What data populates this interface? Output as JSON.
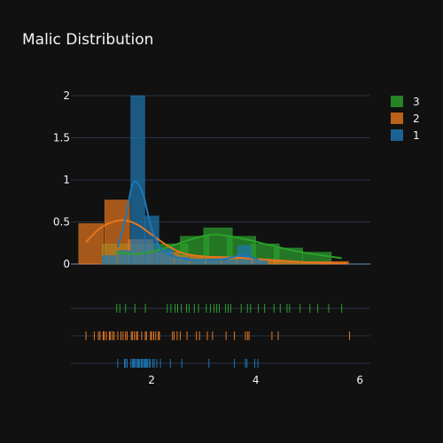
{
  "chart_data": {
    "type": "bar",
    "title": "Malic Distribution",
    "xlabel": "",
    "ylabel": "",
    "xlim": [
      0.45,
      6.2
    ],
    "ylim": [
      0,
      2.2
    ],
    "x_ticks": [
      2,
      4,
      6
    ],
    "y_ticks": [
      0,
      0.5,
      1,
      1.5,
      2
    ],
    "y_tick_labels": [
      "0",
      "0.5",
      "1",
      "1.5",
      "2"
    ],
    "legend_position": "top-right",
    "series": [
      {
        "name": "3",
        "color": "#2ca02c",
        "bin_width": 0.55,
        "histogram": [
          {
            "x0": 1.05,
            "height": 0.24
          },
          {
            "x0": 1.6,
            "height": 0.24
          },
          {
            "x0": 2.15,
            "height": 0.24
          },
          {
            "x0": 2.55,
            "height": 0.33
          },
          {
            "x0": 3.0,
            "height": 0.43
          },
          {
            "x0": 3.45,
            "height": 0.33
          },
          {
            "x0": 3.9,
            "height": 0.24
          },
          {
            "x0": 4.35,
            "height": 0.19
          },
          {
            "x0": 4.9,
            "height": 0.14
          }
        ],
        "kde": [
          [
            1.3,
            0.14
          ],
          [
            1.7,
            0.12
          ],
          [
            2.1,
            0.16
          ],
          [
            2.5,
            0.24
          ],
          [
            2.9,
            0.32
          ],
          [
            3.2,
            0.35
          ],
          [
            3.5,
            0.33
          ],
          [
            3.9,
            0.28
          ],
          [
            4.3,
            0.22
          ],
          [
            4.8,
            0.15
          ],
          [
            5.2,
            0.11
          ],
          [
            5.65,
            0.07
          ]
        ],
        "rug": [
          1.33,
          1.39,
          1.5,
          1.68,
          1.88,
          2.3,
          2.37,
          2.45,
          2.5,
          2.57,
          2.67,
          2.72,
          2.82,
          2.9,
          3.05,
          3.13,
          3.2,
          3.25,
          3.3,
          3.42,
          3.47,
          3.52,
          3.72,
          3.84,
          3.9,
          4.05,
          4.17,
          4.35,
          4.47,
          4.6,
          4.65,
          4.85,
          5.04,
          5.19,
          5.4,
          5.65
        ]
      },
      {
        "name": "2",
        "color": "#e5761e",
        "bin_width": 0.48,
        "histogram": [
          {
            "x0": 0.6,
            "height": 0.48
          },
          {
            "x0": 1.1,
            "height": 0.76
          },
          {
            "x0": 1.55,
            "height": 0.29
          },
          {
            "x0": 2.05,
            "height": 0.14
          },
          {
            "x0": 2.5,
            "height": 0.1
          },
          {
            "x0": 3.0,
            "height": 0.07
          },
          {
            "x0": 3.45,
            "height": 0.07
          },
          {
            "x0": 3.9,
            "height": 0.05
          },
          {
            "x0": 4.35,
            "height": 0.03
          },
          {
            "x0": 4.85,
            "height": 0.03
          },
          {
            "x0": 5.3,
            "height": 0.03
          }
        ],
        "kde": [
          [
            0.74,
            0.26
          ],
          [
            1.0,
            0.42
          ],
          [
            1.25,
            0.5
          ],
          [
            1.5,
            0.52
          ],
          [
            1.75,
            0.46
          ],
          [
            2.0,
            0.35
          ],
          [
            2.3,
            0.22
          ],
          [
            2.6,
            0.13
          ],
          [
            3.0,
            0.09
          ],
          [
            3.5,
            0.08
          ],
          [
            4.0,
            0.06
          ],
          [
            4.5,
            0.04
          ],
          [
            5.0,
            0.02
          ],
          [
            5.4,
            0.01
          ],
          [
            5.75,
            0.01
          ]
        ],
        "rug": [
          0.74,
          0.9,
          0.98,
          1.01,
          1.07,
          1.09,
          1.13,
          1.19,
          1.21,
          1.25,
          1.28,
          1.35,
          1.41,
          1.45,
          1.5,
          1.53,
          1.61,
          1.63,
          1.67,
          1.71,
          1.73,
          1.81,
          1.88,
          1.9,
          1.98,
          2.0,
          2.04,
          2.08,
          2.13,
          2.15,
          2.4,
          2.43,
          2.49,
          2.55,
          2.68,
          2.86,
          2.92,
          3.07,
          3.17,
          3.43,
          3.59,
          3.8,
          3.84,
          3.87,
          4.31,
          4.43,
          5.8
        ]
      },
      {
        "name": "1",
        "color": "#1f77b4",
        "bin_width": 0.27,
        "histogram": [
          {
            "x0": 1.05,
            "height": 0.1
          },
          {
            "x0": 1.35,
            "height": 0.16
          },
          {
            "x0": 1.6,
            "height": 2.0
          },
          {
            "x0": 1.87,
            "height": 0.57
          },
          {
            "x0": 2.15,
            "height": 0.18
          },
          {
            "x0": 2.45,
            "height": 0.08
          },
          {
            "x0": 2.75,
            "height": 0.04
          },
          {
            "x0": 3.05,
            "height": 0.04
          },
          {
            "x0": 3.35,
            "height": 0.05
          },
          {
            "x0": 3.65,
            "height": 0.22
          },
          {
            "x0": 3.95,
            "height": 0.06
          }
        ],
        "kde": [
          [
            1.35,
            0.2
          ],
          [
            1.5,
            0.55
          ],
          [
            1.62,
            0.92
          ],
          [
            1.72,
            0.97
          ],
          [
            1.85,
            0.8
          ],
          [
            2.0,
            0.42
          ],
          [
            2.2,
            0.17
          ],
          [
            2.5,
            0.08
          ],
          [
            2.8,
            0.05
          ],
          [
            3.1,
            0.05
          ],
          [
            3.4,
            0.06
          ],
          [
            3.7,
            0.1
          ],
          [
            3.9,
            0.08
          ],
          [
            4.05,
            0.05
          ]
        ],
        "rug": [
          1.35,
          1.48,
          1.5,
          1.53,
          1.6,
          1.63,
          1.65,
          1.67,
          1.68,
          1.71,
          1.73,
          1.75,
          1.77,
          1.8,
          1.81,
          1.83,
          1.86,
          1.87,
          1.89,
          1.9,
          1.92,
          1.95,
          1.97,
          2.02,
          2.05,
          2.1,
          2.17,
          2.36,
          2.58,
          3.1,
          3.59,
          3.8,
          3.83,
          3.98,
          4.04
        ]
      }
    ]
  }
}
